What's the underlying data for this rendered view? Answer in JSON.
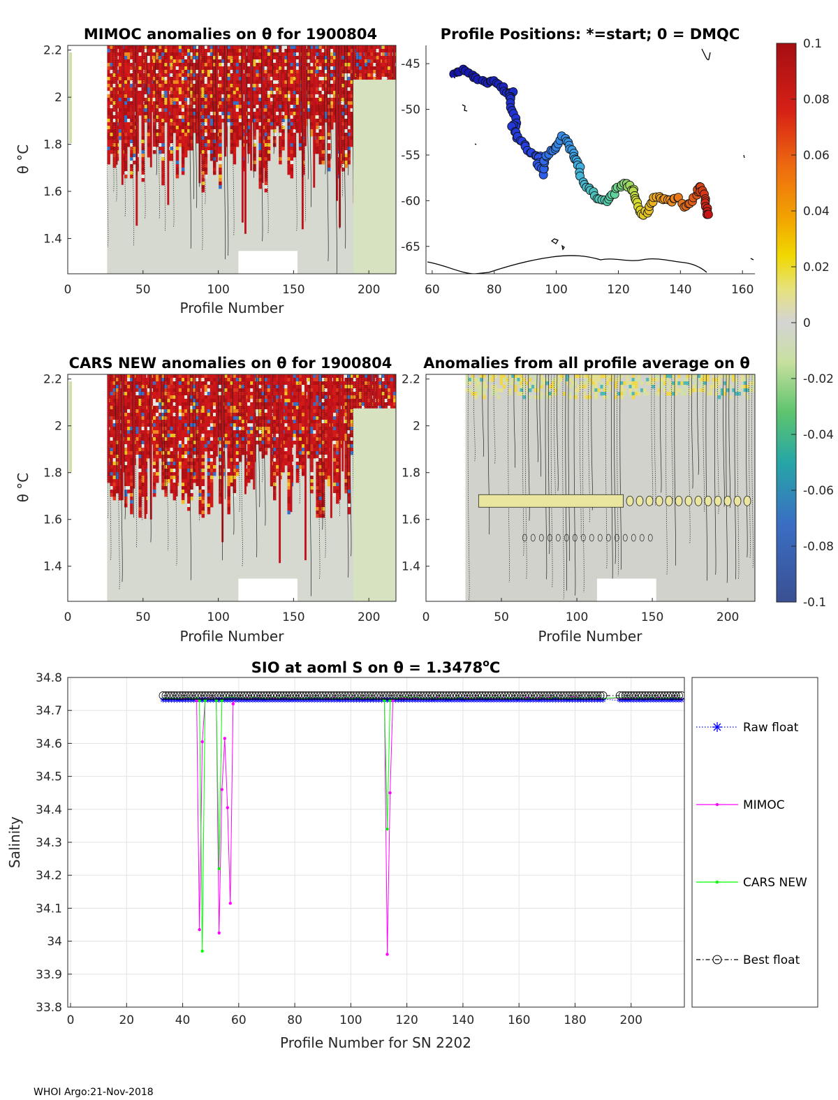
{
  "footer": "WHOI Argo:21-Nov-2018",
  "colors": {
    "raw_float": "#0000ff",
    "mimoc": "#ff00ff",
    "cars_new": "#00ff00",
    "best_float": "#000000"
  },
  "chart_data": [
    {
      "id": "mimoc",
      "type": "heatmap",
      "title": "MIMOC anomalies on θ  for 1900804",
      "xlabel": "Profile Number",
      "ylabel": "θ °C",
      "xlim": [
        0,
        218
      ],
      "ylim": [
        1.25,
        2.22
      ],
      "xticks": [
        0,
        50,
        100,
        150,
        200
      ],
      "yticks": [
        1.4,
        1.6,
        1.8,
        2,
        2.2
      ],
      "yticklabels": [
        "1.4",
        "1.6",
        "1.8",
        "2",
        "2.2"
      ]
    },
    {
      "id": "positions",
      "type": "scatter",
      "title": "Profile Positions: *=start; 0 = DMQC",
      "xlim": [
        58,
        164
      ],
      "ylim": [
        -68,
        -43
      ],
      "xticks": [
        60,
        80,
        100,
        120,
        140,
        160
      ],
      "yticks": [
        -45,
        -50,
        -55,
        -60,
        -65
      ],
      "track": [
        [
          67,
          -46.2
        ],
        [
          70,
          -45.8
        ],
        [
          73,
          -46.2
        ],
        [
          75,
          -46.8
        ],
        [
          78,
          -47
        ],
        [
          80,
          -46.8
        ],
        [
          82,
          -47.5
        ],
        [
          84,
          -48
        ],
        [
          86,
          -48.2
        ],
        [
          85,
          -49
        ],
        [
          86,
          -50
        ],
        [
          87,
          -51.5
        ],
        [
          86,
          -52
        ],
        [
          87,
          -53
        ],
        [
          89,
          -53.5
        ],
        [
          91,
          -54.5
        ],
        [
          93,
          -55
        ],
        [
          95,
          -55.2
        ],
        [
          94,
          -56
        ],
        [
          96,
          -57
        ],
        [
          96,
          -56
        ],
        [
          97,
          -55
        ],
        [
          99,
          -54.5
        ],
        [
          100,
          -54
        ],
        [
          102,
          -53
        ],
        [
          104,
          -53.5
        ],
        [
          105,
          -54.5
        ],
        [
          106,
          -55.5
        ],
        [
          107,
          -56
        ],
        [
          108,
          -57.5
        ],
        [
          110,
          -58.5
        ],
        [
          112,
          -59
        ],
        [
          114,
          -60
        ],
        [
          116,
          -60
        ],
        [
          118,
          -59.5
        ],
        [
          120,
          -58.5
        ],
        [
          122,
          -58
        ],
        [
          124,
          -58.5
        ],
        [
          125,
          -59
        ],
        [
          126,
          -60
        ],
        [
          127,
          -61
        ],
        [
          128,
          -61.5
        ],
        [
          130,
          -61
        ],
        [
          131,
          -60
        ],
        [
          133,
          -59.5
        ],
        [
          135,
          -59.8
        ],
        [
          137,
          -60
        ],
        [
          139,
          -59.5
        ],
        [
          141,
          -60.5
        ],
        [
          143,
          -60.5
        ],
        [
          145,
          -59.5
        ],
        [
          146,
          -58.5
        ],
        [
          147,
          -59
        ],
        [
          148,
          -60
        ],
        [
          148.5,
          -61
        ],
        [
          149,
          -61.5
        ]
      ],
      "colorbar": {
        "ticks": [
          "0.1",
          "0.08",
          "0.06",
          "0.04",
          "0.02",
          "0",
          "-0.02",
          "-0.04",
          "-0.06",
          "-0.08",
          "-0.1"
        ],
        "range": [
          -0.1,
          0.1
        ]
      }
    },
    {
      "id": "cars",
      "type": "heatmap",
      "title": "CARS NEW anomalies on θ for 1900804",
      "xlabel": "Profile Number",
      "ylabel": "θ °C",
      "xlim": [
        0,
        218
      ],
      "ylim": [
        1.25,
        2.22
      ],
      "xticks": [
        0,
        50,
        100,
        150,
        200
      ],
      "yticks": [
        1.4,
        1.6,
        1.8,
        2,
        2.2
      ],
      "yticklabels": [
        "1.4",
        "1.6",
        "1.8",
        "2",
        "2.2"
      ]
    },
    {
      "id": "allavg",
      "type": "heatmap",
      "title": "Anomalies from all profile average on θ",
      "xlabel": "Profile Number",
      "xlim": [
        0,
        218
      ],
      "ylim": [
        1.25,
        2.22
      ],
      "xticks": [
        0,
        50,
        100,
        150,
        200
      ],
      "yticks": [
        1.4,
        1.6,
        1.8,
        2,
        2.2
      ],
      "yticklabels": [
        "1.4",
        "1.6",
        "1.8",
        "2",
        "2.2"
      ]
    },
    {
      "id": "salinity",
      "type": "line",
      "title": "SIO at aoml S on θ = 1.3478°C",
      "title_main": "SIO at aoml S on θ = 1.3478",
      "title_sup": "o",
      "title_end": "C",
      "xlabel": "Profile Number for SN 2202",
      "ylabel": "Salinity",
      "xlim": [
        -1,
        219
      ],
      "ylim": [
        33.8,
        34.8
      ],
      "xticks": [
        0,
        20,
        40,
        60,
        80,
        100,
        120,
        140,
        160,
        180,
        200
      ],
      "yticks": [
        33.8,
        33.9,
        34,
        34.1,
        34.2,
        34.3,
        34.4,
        34.5,
        34.6,
        34.7,
        34.8
      ],
      "yticklabels": [
        "33.8",
        "33.9",
        "34",
        "34.1",
        "34.2",
        "34.3",
        "34.4",
        "34.5",
        "34.6",
        "34.7",
        "34.8"
      ],
      "baseline": {
        "start": 33,
        "end": 218,
        "gap": [
          190,
          196
        ],
        "raw": 34.732,
        "best": 34.745,
        "model": 34.738
      },
      "series": [
        {
          "name": "Raw float",
          "style": "dotted",
          "marker": "star"
        },
        {
          "name": "MIMOC",
          "style": "solid",
          "marker": "dot",
          "dips": [
            [
              45,
              34.73
            ],
            [
              46,
              34.035
            ],
            [
              47,
              34.605
            ],
            [
              48,
              34.73
            ],
            [
              52,
              34.73
            ],
            [
              53,
              34.025
            ],
            [
              54,
              34.46
            ],
            [
              55,
              34.615
            ],
            [
              56,
              34.405
            ],
            [
              57,
              34.115
            ],
            [
              58,
              34.72
            ],
            [
              112,
              34.73
            ],
            [
              113,
              33.96
            ],
            [
              114,
              34.45
            ],
            [
              115,
              34.73
            ]
          ]
        },
        {
          "name": "CARS NEW",
          "style": "solid",
          "marker": "dot",
          "dips": [
            [
              46,
              34.73
            ],
            [
              47,
              33.97
            ],
            [
              48,
              34.73
            ],
            [
              52,
              34.73
            ],
            [
              53,
              34.22
            ],
            [
              54,
              34.73
            ],
            [
              112,
              34.73
            ],
            [
              113,
              34.34
            ],
            [
              114,
              34.73
            ]
          ]
        },
        {
          "name": "Best float",
          "style": "dashdot",
          "marker": "circle"
        }
      ]
    }
  ]
}
